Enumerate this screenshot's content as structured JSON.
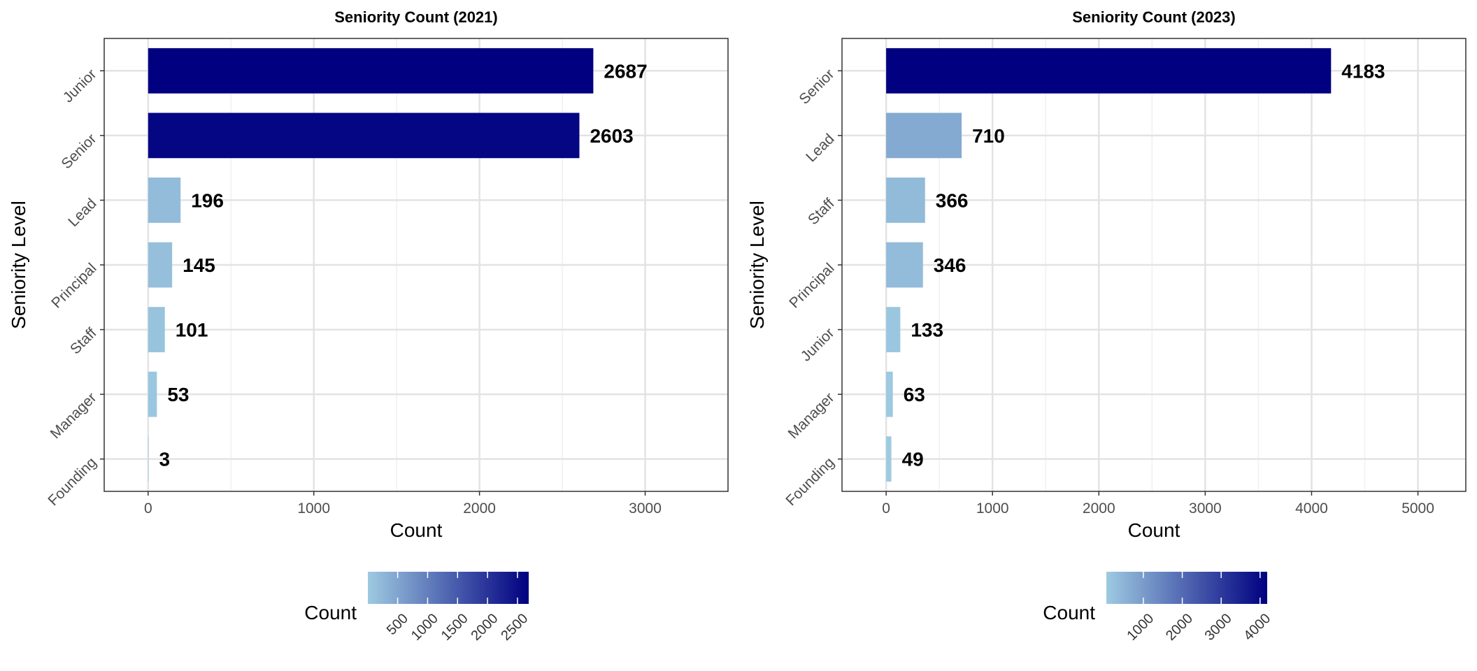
{
  "chart_data": [
    {
      "type": "bar",
      "orientation": "horizontal",
      "title": "Seniority Count (2021)",
      "xlabel": "Count",
      "ylabel": "Seniority Level",
      "categories": [
        "Junior",
        "Senior",
        "Lead",
        "Principal",
        "Staff",
        "Manager",
        "Founding"
      ],
      "values": [
        2687,
        2603,
        196,
        145,
        101,
        53,
        3
      ],
      "xlim": [
        -265,
        3500
      ],
      "xticks": [
        0,
        1000,
        2000,
        3000
      ],
      "grid": true,
      "legend": {
        "title": "Count",
        "placement": "bottom",
        "type": "colorbar",
        "range": [
          3,
          2687
        ],
        "ticks": [
          500,
          1000,
          1500,
          2000,
          2500
        ],
        "colors": [
          "#9ecae1",
          "#000080"
        ]
      }
    },
    {
      "type": "bar",
      "orientation": "horizontal",
      "title": "Seniority Count (2023)",
      "xlabel": "Count",
      "ylabel": "Seniority Level",
      "categories": [
        "Senior",
        "Lead",
        "Staff",
        "Principal",
        "Junior",
        "Manager",
        "Founding"
      ],
      "values": [
        4183,
        710,
        366,
        346,
        133,
        63,
        49
      ],
      "xlim": [
        -415,
        5450
      ],
      "xticks": [
        0,
        1000,
        2000,
        3000,
        4000,
        5000
      ],
      "grid": true,
      "legend": {
        "title": "Count",
        "placement": "bottom",
        "type": "colorbar",
        "range": [
          49,
          4183
        ],
        "ticks": [
          1000,
          2000,
          3000,
          4000
        ],
        "colors": [
          "#9ecae1",
          "#000080"
        ]
      }
    }
  ]
}
